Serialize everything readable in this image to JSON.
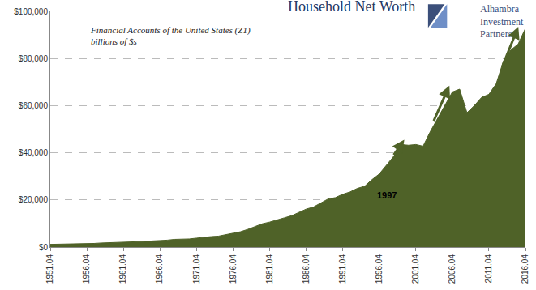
{
  "chart_data": {
    "type": "area",
    "title": "Household Net Worth",
    "subtitle": [
      "Financial Accounts of the United States (Z1)",
      "billions of $s"
    ],
    "logo": [
      "Alhambra",
      "Investment",
      "Partners"
    ],
    "annotations": [
      {
        "text": "1997",
        "x": 46,
        "y": 22000
      }
    ],
    "color": "#4f6228",
    "grid": true,
    "categories": [
      "1951.04",
      null,
      null,
      null,
      null,
      "1956.04",
      null,
      null,
      null,
      null,
      "1961.04",
      null,
      null,
      null,
      null,
      "1966.04",
      null,
      null,
      null,
      null,
      "1971.04",
      null,
      null,
      null,
      null,
      "1976.04",
      null,
      null,
      null,
      null,
      "1981.04",
      null,
      null,
      null,
      null,
      "1986.04",
      null,
      null,
      null,
      null,
      "1991.04",
      null,
      null,
      null,
      null,
      "1996.04",
      null,
      null,
      null,
      null,
      "2001.04",
      null,
      null,
      null,
      null,
      "2006.04",
      null,
      null,
      null,
      null,
      "2011.04",
      null,
      null,
      null,
      null,
      "2016.04"
    ],
    "values": [
      1160,
      1200,
      1220,
      1350,
      1450,
      1550,
      1550,
      1750,
      1830,
      1880,
      2050,
      2070,
      2250,
      2420,
      2620,
      2660,
      2950,
      3270,
      3300,
      3450,
      3800,
      4250,
      4450,
      4650,
      5200,
      5800,
      6500,
      7500,
      8600,
      9900,
      10600,
      11400,
      12400,
      13300,
      14800,
      16100,
      17000,
      18600,
      20400,
      21000,
      22400,
      23400,
      24900,
      25800,
      28600,
      31000,
      34900,
      38600,
      43500,
      43200,
      43500,
      42800,
      49100,
      54700,
      60600,
      65800,
      67000,
      57000,
      60000,
      63500,
      64800,
      69300,
      79000,
      83600,
      86100,
      92800
    ],
    "ylim": [
      0,
      100000
    ],
    "yticks": [
      {
        "value": 0,
        "label": "$0"
      },
      {
        "value": 20000,
        "label": "$20,000"
      },
      {
        "value": 40000,
        "label": "$40,000"
      },
      {
        "value": 60000,
        "label": "$60,000"
      },
      {
        "value": 80000,
        "label": "$80,000"
      },
      {
        "value": 100000,
        "label": "$100,000"
      }
    ]
  }
}
